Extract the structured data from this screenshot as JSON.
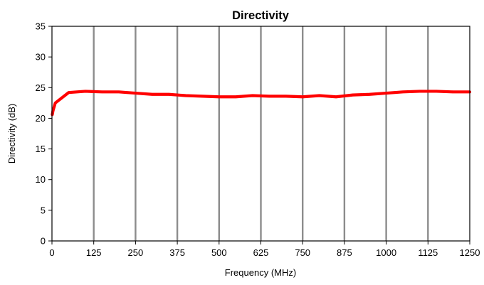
{
  "chart_data": {
    "type": "line",
    "title": "Directivity",
    "xlabel": "Frequency (MHz)",
    "ylabel": "Directivity (dB)",
    "xlim": [
      0,
      1250
    ],
    "ylim": [
      0,
      35
    ],
    "x_ticks": [
      "0",
      "125",
      "250",
      "375",
      "500",
      "625",
      "750",
      "875",
      "1000",
      "1125",
      "1250"
    ],
    "y_ticks": [
      "0",
      "5",
      "10",
      "15",
      "20",
      "25",
      "30",
      "35"
    ],
    "grid": "vertical",
    "legend": "none",
    "series": [
      {
        "color": "#ff0000",
        "x": [
          1,
          3,
          10,
          50,
          100,
          150,
          200,
          250,
          300,
          350,
          400,
          450,
          500,
          550,
          600,
          650,
          700,
          750,
          800,
          850,
          900,
          950,
          1000,
          1050,
          1100,
          1150,
          1200,
          1250
        ],
        "y": [
          20.6,
          21.2,
          22.5,
          24.2,
          24.4,
          24.3,
          24.3,
          24.1,
          23.9,
          23.9,
          23.7,
          23.6,
          23.5,
          23.5,
          23.7,
          23.6,
          23.6,
          23.5,
          23.7,
          23.5,
          23.8,
          23.9,
          24.1,
          24.3,
          24.4,
          24.4,
          24.3,
          24.3
        ]
      }
    ]
  }
}
